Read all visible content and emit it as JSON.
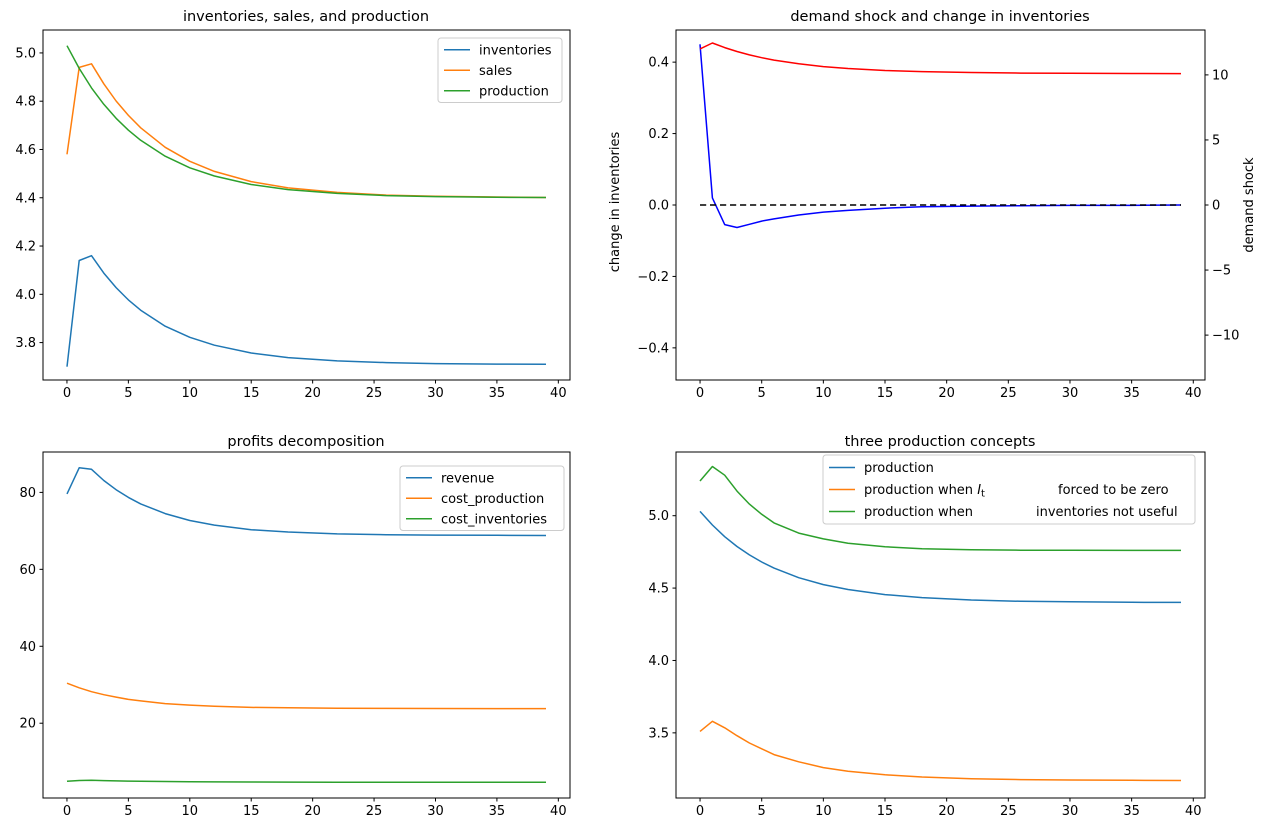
{
  "figure": {
    "background": "#ffffff",
    "panels": 4
  },
  "chart_data": [
    {
      "id": "inventories-sales-production",
      "type": "line",
      "title": "inventories, sales, and production",
      "xlim": [
        -1.95,
        40.95
      ],
      "x_ticks": [
        0,
        5,
        10,
        15,
        20,
        25,
        30,
        35,
        40
      ],
      "x_tick_labels": [
        "0",
        "5",
        "10",
        "15",
        "20",
        "25",
        "30",
        "35",
        "40"
      ],
      "x": [
        0,
        1,
        2,
        3,
        4,
        5,
        6,
        8,
        10,
        12,
        15,
        18,
        22,
        26,
        30,
        35,
        39
      ],
      "y_axis": {
        "lim": [
          3.645,
          5.095
        ],
        "ticks": [
          3.8,
          4.0,
          4.2,
          4.4,
          4.6,
          4.8,
          5.0
        ],
        "tick_labels": [
          "3.8",
          "4.0",
          "4.2",
          "4.4",
          "4.6",
          "4.8",
          "5.0"
        ]
      },
      "series": [
        {
          "name": "inventories",
          "color": "#1f77b4",
          "y": [
            3.7,
            4.14,
            4.16,
            4.088,
            4.028,
            3.977,
            3.934,
            3.868,
            3.822,
            3.789,
            3.757,
            3.738,
            3.724,
            3.717,
            3.713,
            3.711,
            3.71
          ]
        },
        {
          "name": "sales",
          "color": "#ff7f0e",
          "y": [
            4.58,
            4.94,
            4.955,
            4.872,
            4.801,
            4.741,
            4.69,
            4.609,
            4.551,
            4.509,
            4.467,
            4.441,
            4.422,
            4.411,
            4.406,
            4.403,
            4.401
          ]
        },
        {
          "name": "production",
          "color": "#2ca02c",
          "y": [
            5.03,
            4.936,
            4.855,
            4.787,
            4.729,
            4.68,
            4.638,
            4.572,
            4.524,
            4.49,
            4.455,
            4.434,
            4.418,
            4.409,
            4.405,
            4.402,
            4.401
          ]
        }
      ],
      "legend": {
        "position": "upper right",
        "entries": [
          {
            "color": "#1f77b4",
            "parts": [
              {
                "text": "inventories"
              }
            ]
          },
          {
            "color": "#ff7f0e",
            "parts": [
              {
                "text": "sales"
              }
            ]
          },
          {
            "color": "#2ca02c",
            "parts": [
              {
                "text": "production"
              }
            ]
          }
        ]
      }
    },
    {
      "id": "demand-shock-and-change-in-inventories",
      "type": "line",
      "title": "demand shock and change in inventories",
      "xlim": [
        -1.95,
        40.95
      ],
      "x_ticks": [
        0,
        5,
        10,
        15,
        20,
        25,
        30,
        35,
        40
      ],
      "x_tick_labels": [
        "0",
        "5",
        "10",
        "15",
        "20",
        "25",
        "30",
        "35",
        "40"
      ],
      "x": [
        0,
        1,
        2,
        3,
        4,
        5,
        6,
        8,
        10,
        12,
        15,
        18,
        22,
        26,
        30,
        35,
        39
      ],
      "y_axis": {
        "lim": [
          -0.49,
          0.49
        ],
        "ticks": [
          -0.4,
          -0.2,
          0.0,
          0.2,
          0.4
        ],
        "tick_labels": [
          "−0.4",
          "−0.2",
          "0.0",
          "0.2",
          "0.4"
        ],
        "label": "change in inventories",
        "label_color": "#0000ff"
      },
      "y_axis_right": {
        "lim": [
          -13.45,
          13.45
        ],
        "ticks": [
          -10,
          -5,
          0,
          5,
          10
        ],
        "tick_labels": [
          "−10",
          "−5",
          "0",
          "5",
          "10"
        ],
        "label": "demand shock",
        "label_color": "#ff0000"
      },
      "series": [
        {
          "name": "change in inventories",
          "color": "#0000ff",
          "y": [
            0.45,
            0.02,
            -0.055,
            -0.063,
            -0.054,
            -0.045,
            -0.039,
            -0.028,
            -0.02,
            -0.015,
            -0.009,
            -0.005,
            -0.003,
            -0.002,
            -0.001,
            -0.001,
            0.0
          ]
        },
        {
          "name": "zero line",
          "color": "#000000",
          "dash": true,
          "x": [
            0,
            39
          ],
          "y": [
            0,
            0
          ]
        },
        {
          "name": "demand shock",
          "color": "#ff0000",
          "axis": "right",
          "y": [
            12.0,
            12.45,
            12.1,
            11.8,
            11.54,
            11.32,
            11.14,
            10.86,
            10.64,
            10.49,
            10.34,
            10.25,
            10.18,
            10.14,
            10.12,
            10.11,
            10.1
          ]
        }
      ]
    },
    {
      "id": "profits-decomposition",
      "type": "line",
      "title": "profits decomposition",
      "xlim": [
        -1.95,
        40.95
      ],
      "x_ticks": [
        0,
        5,
        10,
        15,
        20,
        25,
        30,
        35,
        40
      ],
      "x_tick_labels": [
        "0",
        "5",
        "10",
        "15",
        "20",
        "25",
        "30",
        "35",
        "40"
      ],
      "x": [
        0,
        1,
        2,
        3,
        4,
        5,
        6,
        8,
        10,
        12,
        15,
        18,
        22,
        26,
        30,
        35,
        39
      ],
      "y_axis": {
        "lim": [
          0.56,
          90.5
        ],
        "ticks": [
          20,
          40,
          60,
          80
        ],
        "tick_labels": [
          "20",
          "40",
          "60",
          "80"
        ]
      },
      "series": [
        {
          "name": "revenue",
          "color": "#1f77b4",
          "y": [
            79.6,
            86.4,
            86.0,
            83.1,
            80.7,
            78.7,
            77.0,
            74.5,
            72.7,
            71.5,
            70.3,
            69.7,
            69.2,
            69.0,
            68.9,
            68.85,
            68.8
          ]
        },
        {
          "name": "cost_production",
          "color": "#ff7f0e",
          "y": [
            30.4,
            29.2,
            28.2,
            27.4,
            26.8,
            26.2,
            25.8,
            25.1,
            24.7,
            24.4,
            24.1,
            24.0,
            23.9,
            23.85,
            23.82,
            23.81,
            23.8
          ]
        },
        {
          "name": "cost_inventories",
          "color": "#2ca02c",
          "y": [
            4.9,
            5.1,
            5.15,
            5.08,
            5.01,
            4.96,
            4.91,
            4.84,
            4.79,
            4.75,
            4.71,
            4.69,
            4.67,
            4.66,
            4.655,
            4.652,
            4.65
          ]
        }
      ],
      "legend": {
        "position": "upper right",
        "entries": [
          {
            "color": "#1f77b4",
            "parts": [
              {
                "text": "revenue"
              }
            ]
          },
          {
            "color": "#ff7f0e",
            "parts": [
              {
                "text": "cost_production"
              }
            ]
          },
          {
            "color": "#2ca02c",
            "parts": [
              {
                "text": "cost_inventories"
              }
            ]
          }
        ]
      }
    },
    {
      "id": "three-production-concepts",
      "type": "line",
      "title": "three production concepts",
      "xlim": [
        -1.95,
        40.95
      ],
      "x_ticks": [
        0,
        5,
        10,
        15,
        20,
        25,
        30,
        35,
        40
      ],
      "x_tick_labels": [
        "0",
        "5",
        "10",
        "15",
        "20",
        "25",
        "30",
        "35",
        "40"
      ],
      "x": [
        0,
        1,
        2,
        3,
        4,
        5,
        6,
        8,
        10,
        12,
        15,
        18,
        22,
        26,
        30,
        35,
        39
      ],
      "y_axis": {
        "lim": [
          3.05,
          5.44
        ],
        "ticks": [
          3.5,
          4.0,
          4.5,
          5.0
        ],
        "tick_labels": [
          "3.5",
          "4.0",
          "4.5",
          "5.0"
        ]
      },
      "series": [
        {
          "name": "production",
          "color": "#1f77b4",
          "y": [
            5.03,
            4.936,
            4.855,
            4.787,
            4.729,
            4.68,
            4.638,
            4.572,
            4.524,
            4.49,
            4.455,
            4.434,
            4.418,
            4.409,
            4.405,
            4.402,
            4.401
          ]
        },
        {
          "name": "production when It forced to be zero",
          "color": "#ff7f0e",
          "y": [
            3.51,
            3.58,
            3.535,
            3.48,
            3.43,
            3.39,
            3.35,
            3.3,
            3.26,
            3.235,
            3.21,
            3.195,
            3.183,
            3.177,
            3.174,
            3.172,
            3.171
          ]
        },
        {
          "name": "production when inventories not useful",
          "color": "#2ca02c",
          "y": [
            5.24,
            5.34,
            5.28,
            5.17,
            5.08,
            5.01,
            4.95,
            4.88,
            4.84,
            4.81,
            4.785,
            4.772,
            4.765,
            4.762,
            4.761,
            4.76,
            4.76
          ]
        }
      ],
      "legend": {
        "position": "upper center",
        "entries": [
          {
            "color": "#1f77b4",
            "parts": [
              {
                "text": "production"
              }
            ]
          },
          {
            "color": "#ff7f0e",
            "parts": [
              {
                "text": "production when  "
              },
              {
                "text": "I",
                "style": "italic"
              },
              {
                "text": "t",
                "style": "subscript"
              }
            ],
            "label2": "forced to be zero",
            "label2_dx": 235
          },
          {
            "color": "#2ca02c",
            "parts": [
              {
                "text": "production when"
              }
            ],
            "label2": "inventories not useful",
            "label2_dx": 213
          }
        ]
      }
    }
  ]
}
